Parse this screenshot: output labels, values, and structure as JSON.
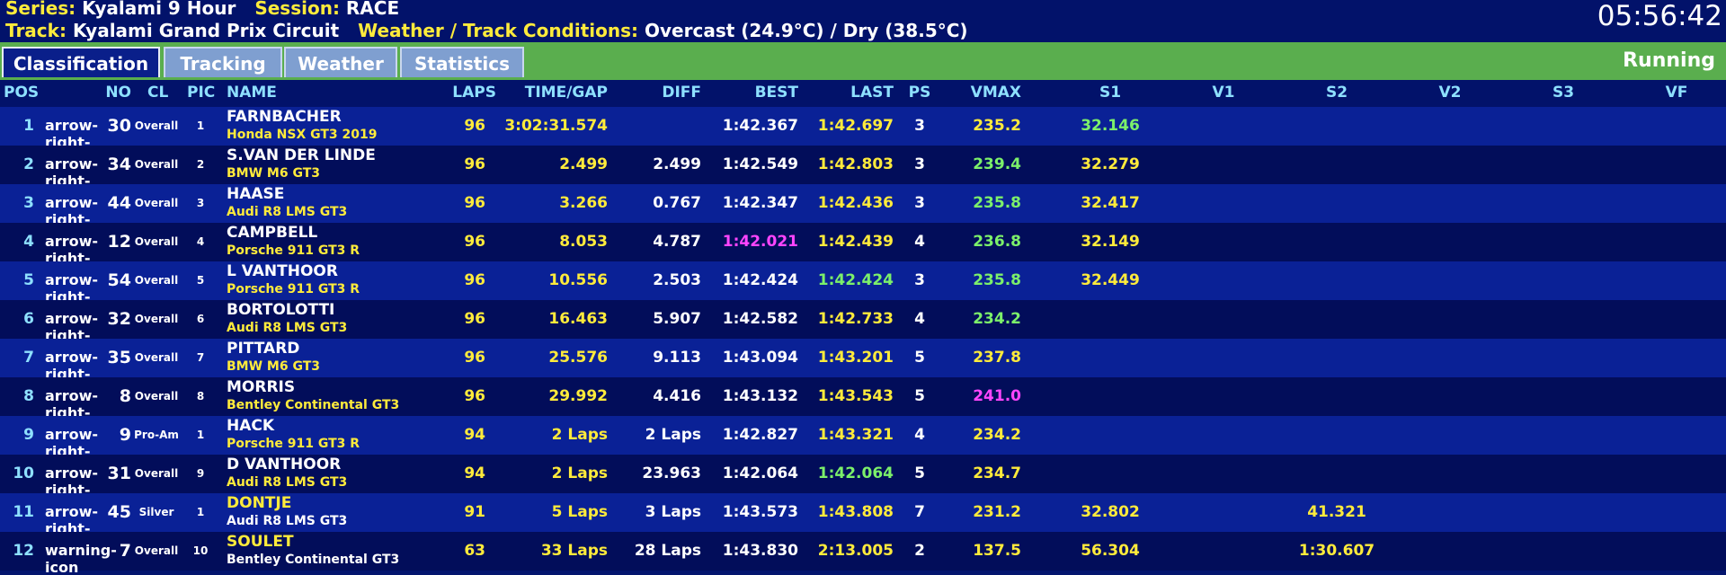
{
  "info": {
    "series_label": "Series:",
    "series": "Kyalami 9 Hour",
    "session_label": "Session:",
    "session": "RACE",
    "track_label": "Track:",
    "track": "Kyalami Grand Prix Circuit",
    "weather_label": "Weather / Track Conditions:",
    "weather": "Overcast (24.9°C) / Dry (38.5°C)",
    "clock": "05:56:42"
  },
  "tabs": [
    "Classification",
    "Tracking",
    "Weather",
    "Statistics"
  ],
  "active_tab": "Classification",
  "status": "Running",
  "columns": {
    "pos": "POS",
    "no": "NO",
    "cl": "CL",
    "pic": "PIC",
    "name": "NAME",
    "laps": "LAPS",
    "gap": "TIME/GAP",
    "diff": "DIFF",
    "best": "BEST",
    "last": "LAST",
    "ps": "PS",
    "vmax": "VMAX",
    "s1": "S1",
    "v1": "V1",
    "s2": "S2",
    "v2": "V2",
    "s3": "S3",
    "vf": "VF"
  },
  "colors": {
    "yellow": "#ffeb3b",
    "green": "#7cf06a",
    "magenta": "#ff45ff",
    "white": "#ffffff",
    "cyan": "#8ee0ff"
  },
  "rows": [
    {
      "pos": "1",
      "icon": "arrow-right-icon",
      "no": "30",
      "cl": "Overall",
      "pic": "1",
      "name": "FARNBACHER",
      "car": "Honda NSX GT3 2019",
      "name_color": "white",
      "car_color": "yellow",
      "laps": "96",
      "gap": "3:02:31.574",
      "diff": "",
      "best": "1:42.367",
      "best_color": "white",
      "last": "1:42.697",
      "last_color": "yellow",
      "ps": "3",
      "vmax": "235.2",
      "vmax_color": "yellow",
      "s1": "32.146",
      "s1_color": "green",
      "s2": ""
    },
    {
      "pos": "2",
      "icon": "arrow-right-icon",
      "no": "34",
      "cl": "Overall",
      "pic": "2",
      "name": "S.VAN DER LINDE",
      "car": "BMW M6 GT3",
      "name_color": "white",
      "car_color": "yellow",
      "laps": "96",
      "gap": "2.499",
      "diff": "2.499",
      "best": "1:42.549",
      "best_color": "white",
      "last": "1:42.803",
      "last_color": "yellow",
      "ps": "3",
      "vmax": "239.4",
      "vmax_color": "green",
      "s1": "32.279",
      "s1_color": "yellow",
      "s2": ""
    },
    {
      "pos": "3",
      "icon": "arrow-right-icon",
      "no": "44",
      "cl": "Overall",
      "pic": "3",
      "name": "HAASE",
      "car": "Audi R8 LMS GT3",
      "name_color": "white",
      "car_color": "yellow",
      "laps": "96",
      "gap": "3.266",
      "diff": "0.767",
      "best": "1:42.347",
      "best_color": "white",
      "last": "1:42.436",
      "last_color": "yellow",
      "ps": "3",
      "vmax": "235.8",
      "vmax_color": "green",
      "s1": "32.417",
      "s1_color": "yellow",
      "s2": ""
    },
    {
      "pos": "4",
      "icon": "arrow-right-icon",
      "no": "12",
      "cl": "Overall",
      "pic": "4",
      "name": "CAMPBELL",
      "car": "Porsche 911 GT3 R",
      "name_color": "white",
      "car_color": "yellow",
      "laps": "96",
      "gap": "8.053",
      "diff": "4.787",
      "best": "1:42.021",
      "best_color": "magenta",
      "last": "1:42.439",
      "last_color": "yellow",
      "ps": "4",
      "vmax": "236.8",
      "vmax_color": "green",
      "s1": "32.149",
      "s1_color": "yellow",
      "s2": ""
    },
    {
      "pos": "5",
      "icon": "arrow-right-icon",
      "no": "54",
      "cl": "Overall",
      "pic": "5",
      "name": "L VANTHOOR",
      "car": "Porsche 911 GT3 R",
      "name_color": "white",
      "car_color": "yellow",
      "laps": "96",
      "gap": "10.556",
      "diff": "2.503",
      "best": "1:42.424",
      "best_color": "white",
      "last": "1:42.424",
      "last_color": "green",
      "ps": "3",
      "vmax": "235.8",
      "vmax_color": "green",
      "s1": "32.449",
      "s1_color": "yellow",
      "s2": ""
    },
    {
      "pos": "6",
      "icon": "arrow-right-icon",
      "no": "32",
      "cl": "Overall",
      "pic": "6",
      "name": "BORTOLOTTI",
      "car": "Audi R8 LMS GT3",
      "name_color": "white",
      "car_color": "yellow",
      "laps": "96",
      "gap": "16.463",
      "diff": "5.907",
      "best": "1:42.582",
      "best_color": "white",
      "last": "1:42.733",
      "last_color": "yellow",
      "ps": "4",
      "vmax": "234.2",
      "vmax_color": "green",
      "s1": "",
      "s1_color": "yellow",
      "s2": ""
    },
    {
      "pos": "7",
      "icon": "arrow-right-icon",
      "no": "35",
      "cl": "Overall",
      "pic": "7",
      "name": "PITTARD",
      "car": "BMW M6 GT3",
      "name_color": "white",
      "car_color": "yellow",
      "laps": "96",
      "gap": "25.576",
      "diff": "9.113",
      "best": "1:43.094",
      "best_color": "white",
      "last": "1:43.201",
      "last_color": "yellow",
      "ps": "5",
      "vmax": "237.8",
      "vmax_color": "yellow",
      "s1": "",
      "s1_color": "yellow",
      "s2": ""
    },
    {
      "pos": "8",
      "icon": "arrow-right-icon",
      "no": "8",
      "cl": "Overall",
      "pic": "8",
      "name": "MORRIS",
      "car": "Bentley Continental GT3",
      "name_color": "white",
      "car_color": "yellow",
      "laps": "96",
      "gap": "29.992",
      "diff": "4.416",
      "best": "1:43.132",
      "best_color": "white",
      "last": "1:43.543",
      "last_color": "yellow",
      "ps": "5",
      "vmax": "241.0",
      "vmax_color": "magenta",
      "s1": "",
      "s1_color": "yellow",
      "s2": ""
    },
    {
      "pos": "9",
      "icon": "arrow-right-icon",
      "no": "9",
      "cl": "Pro-Am",
      "pic": "1",
      "name": "HACK",
      "car": "Porsche 911 GT3 R",
      "name_color": "white",
      "car_color": "yellow",
      "laps": "94",
      "gap": "2 Laps",
      "diff": "2 Laps",
      "best": "1:42.827",
      "best_color": "white",
      "last": "1:43.321",
      "last_color": "yellow",
      "ps": "4",
      "vmax": "234.2",
      "vmax_color": "yellow",
      "s1": "",
      "s1_color": "yellow",
      "s2": ""
    },
    {
      "pos": "10",
      "icon": "arrow-right-icon",
      "no": "31",
      "cl": "Overall",
      "pic": "9",
      "name": "D VANTHOOR",
      "car": "Audi R8 LMS GT3",
      "name_color": "white",
      "car_color": "yellow",
      "laps": "94",
      "gap": "2 Laps",
      "diff": "23.963",
      "best": "1:42.064",
      "best_color": "white",
      "last": "1:42.064",
      "last_color": "green",
      "ps": "5",
      "vmax": "234.7",
      "vmax_color": "yellow",
      "s1": "",
      "s1_color": "yellow",
      "s2": ""
    },
    {
      "pos": "11",
      "icon": "arrow-right-icon",
      "no": "45",
      "cl": "Silver",
      "pic": "1",
      "name": "DONTJE",
      "car": "Audi R8 LMS GT3",
      "name_color": "yellow",
      "car_color": "white",
      "laps": "91",
      "gap": "5 Laps",
      "diff": "3 Laps",
      "best": "1:43.573",
      "best_color": "white",
      "last": "1:43.808",
      "last_color": "yellow",
      "ps": "7",
      "vmax": "231.2",
      "vmax_color": "yellow",
      "s1": "32.802",
      "s1_color": "yellow",
      "s2": "41.321"
    },
    {
      "pos": "12",
      "icon": "warning-icon",
      "no": "7",
      "cl": "Overall",
      "pic": "10",
      "name": "SOULET",
      "car": "Bentley Continental GT3",
      "name_color": "yellow",
      "car_color": "white",
      "laps": "63",
      "gap": "33 Laps",
      "diff": "28 Laps",
      "best": "1:43.830",
      "best_color": "white",
      "last": "2:13.005",
      "last_color": "yellow",
      "ps": "2",
      "vmax": "137.5",
      "vmax_color": "yellow",
      "s1": "56.304",
      "s1_color": "yellow",
      "s2": "1:30.607"
    }
  ]
}
